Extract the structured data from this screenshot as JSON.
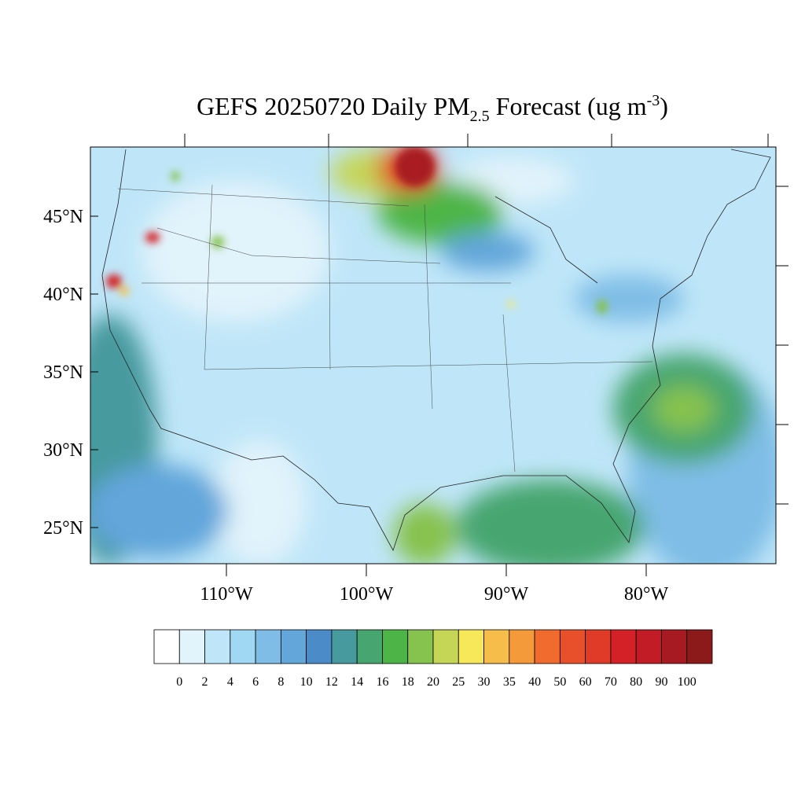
{
  "title": {
    "main": "GEFS 20250720 Daily PM",
    "sub": "2.5",
    "rest": " Forecast (ug m",
    "sup": "-3",
    "end": ")"
  },
  "lat_ticks": [
    {
      "value": 45,
      "label": "45°N"
    },
    {
      "value": 40,
      "label": "40°N"
    },
    {
      "value": 35,
      "label": "35°N"
    },
    {
      "value": 30,
      "label": "30°N"
    },
    {
      "value": 25,
      "label": "25°N"
    }
  ],
  "lon_ticks": [
    {
      "value": -110,
      "label": "110°W"
    },
    {
      "value": -100,
      "label": "100°W"
    },
    {
      "value": -90,
      "label": "90°W"
    },
    {
      "value": -80,
      "label": "80°W"
    }
  ],
  "colorbar": {
    "levels": [
      0,
      2,
      4,
      6,
      8,
      10,
      12,
      14,
      16,
      18,
      20,
      25,
      30,
      35,
      40,
      50,
      60,
      70,
      80,
      90,
      100
    ],
    "colors": [
      "#ffffff",
      "#e1f3fb",
      "#bfe6f8",
      "#a0d8f4",
      "#7fbde6",
      "#62a6da",
      "#4a8bc8",
      "#479a9e",
      "#47a670",
      "#4db547",
      "#86c24e",
      "#c5d556",
      "#f7e85a",
      "#f7bd4a",
      "#f49a3b",
      "#f06b2d",
      "#e8502b",
      "#e03a28",
      "#d42127",
      "#c21c26",
      "#a81a22",
      "#8c1a1a"
    ]
  }
}
